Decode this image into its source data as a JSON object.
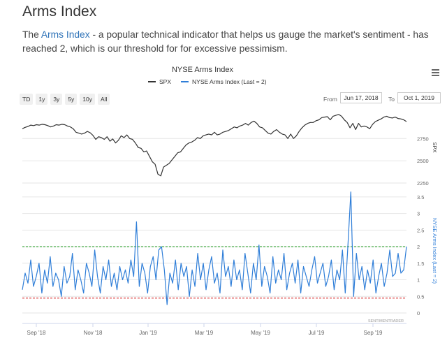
{
  "page": {
    "heading": "Arms Index",
    "intro_before": "The ",
    "intro_link": "Arms Index",
    "intro_after": " - a popular technical indicator that helps us gauge the market's sentiment - has reached 2, which is our threshold for for excessive pessimism."
  },
  "toolbar": {
    "range_buttons": [
      "TD",
      "1y",
      "3y",
      "5y",
      "10y",
      "All"
    ],
    "from_label": "From",
    "from_value": "Jun 17, 2018",
    "to_label": "To",
    "to_value": "Oct 1, 2019",
    "menu_icon": "hamburger-menu-icon"
  },
  "chart_data": {
    "type": "line",
    "title": "NYSE Arms Index",
    "credit": "SENTIMENTRADER",
    "x_labels": [
      "Sep '18",
      "Nov '18",
      "Jan '19",
      "Mar '19",
      "May '19",
      "Jul '19",
      "Sep '19"
    ],
    "x_range": [
      "Aug 2018",
      "Oct 2019"
    ],
    "panels": [
      {
        "axis_label": "SPX",
        "ylim": [
          2250,
          3050
        ],
        "ticks": [
          2250,
          2500,
          2750
        ],
        "series": [
          {
            "name": "SPX",
            "color": "#333333",
            "values": [
              2860,
              2875,
              2885,
              2900,
              2895,
              2905,
              2900,
              2910,
              2905,
              2895,
              2880,
              2890,
              2905,
              2900,
              2910,
              2905,
              2890,
              2880,
              2860,
              2820,
              2810,
              2800,
              2810,
              2830,
              2815,
              2785,
              2740,
              2770,
              2760,
              2740,
              2770,
              2720,
              2745,
              2700,
              2730,
              2780,
              2760,
              2790,
              2750,
              2740,
              2700,
              2650,
              2640,
              2600,
              2610,
              2550,
              2490,
              2460,
              2350,
              2330,
              2430,
              2450,
              2470,
              2510,
              2550,
              2590,
              2600,
              2640,
              2680,
              2700,
              2710,
              2730,
              2760,
              2750,
              2780,
              2790,
              2800,
              2790,
              2820,
              2790,
              2800,
              2820,
              2830,
              2840,
              2860,
              2880,
              2870,
              2890,
              2900,
              2920,
              2900,
              2930,
              2945,
              2920,
              2880,
              2870,
              2840,
              2810,
              2800,
              2830,
              2850,
              2820,
              2800,
              2790,
              2750,
              2800,
              2750,
              2780,
              2830,
              2870,
              2900,
              2920,
              2930,
              2930,
              2950,
              2960,
              2985,
              2990,
              2995,
              2960,
              3000,
              3010,
              3020,
              3000,
              2960,
              2930,
              2870,
              2920,
              2850,
              2920,
              2880,
              2890,
              2880,
              2860,
              2910,
              2940,
              2955,
              2970,
              2990,
              3000,
              2985,
              2980,
              2990,
              2975,
              2970,
              2960,
              2940
            ]
          }
        ]
      },
      {
        "axis_label": "NYSE Arms Index (Last = 2)",
        "ylim": [
          0,
          3.75
        ],
        "ticks": [
          0,
          0.5,
          1,
          1.5,
          2,
          2.5,
          3,
          3.5
        ],
        "threshold_lines": [
          {
            "value": 2,
            "color": "#2ca02c"
          },
          {
            "value": 0.45,
            "color": "#d62728"
          }
        ],
        "series": [
          {
            "name": "NYSE Arms Index (Last = 2)",
            "color": "#2f7ed8",
            "values": [
              0.7,
              1.2,
              0.9,
              1.6,
              0.8,
              1.1,
              1.5,
              0.6,
              1.3,
              0.9,
              1.7,
              0.8,
              1.2,
              1.0,
              0.5,
              1.4,
              0.9,
              1.1,
              1.8,
              0.7,
              1.3,
              1.0,
              0.6,
              1.5,
              1.2,
              0.8,
              1.9,
              1.1,
              0.6,
              1.4,
              1.0,
              1.6,
              0.8,
              1.2,
              0.7,
              1.4,
              1.0,
              1.3,
              0.9,
              1.6,
              1.1,
              2.75,
              0.8,
              1.5,
              1.2,
              0.6,
              1.4,
              1.7,
              1.0,
              1.9,
              2.0,
              1.3,
              0.25,
              1.2,
              0.9,
              1.6,
              0.7,
              1.5,
              1.1,
              1.4,
              0.5,
              1.3,
              0.8,
              1.8,
              1.0,
              1.5,
              0.7,
              1.3,
              1.7,
              0.9,
              1.2,
              0.6,
              1.9,
              1.1,
              1.4,
              0.8,
              1.6,
              1.0,
              1.3,
              0.7,
              1.8,
              1.2,
              0.6,
              1.5,
              1.0,
              2.05,
              0.8,
              1.4,
              1.1,
              0.6,
              1.7,
              0.9,
              1.3,
              1.0,
              1.8,
              0.7,
              1.2,
              1.5,
              0.9,
              1.6,
              0.6,
              1.4,
              1.1,
              0.8,
              1.3,
              1.7,
              0.9,
              1.2,
              1.5,
              0.8,
              1.1,
              1.6,
              0.7,
              1.3,
              1.0,
              1.9,
              0.6,
              2.1,
              3.65,
              0.5,
              1.8,
              1.0,
              1.4,
              0.7,
              1.3,
              0.9,
              1.6,
              0.6,
              1.1,
              1.5,
              0.8,
              1.2,
              1.9,
              1.1,
              1.2,
              1.8,
              1.2,
              1.3,
              2.0
            ]
          }
        ]
      }
    ]
  }
}
